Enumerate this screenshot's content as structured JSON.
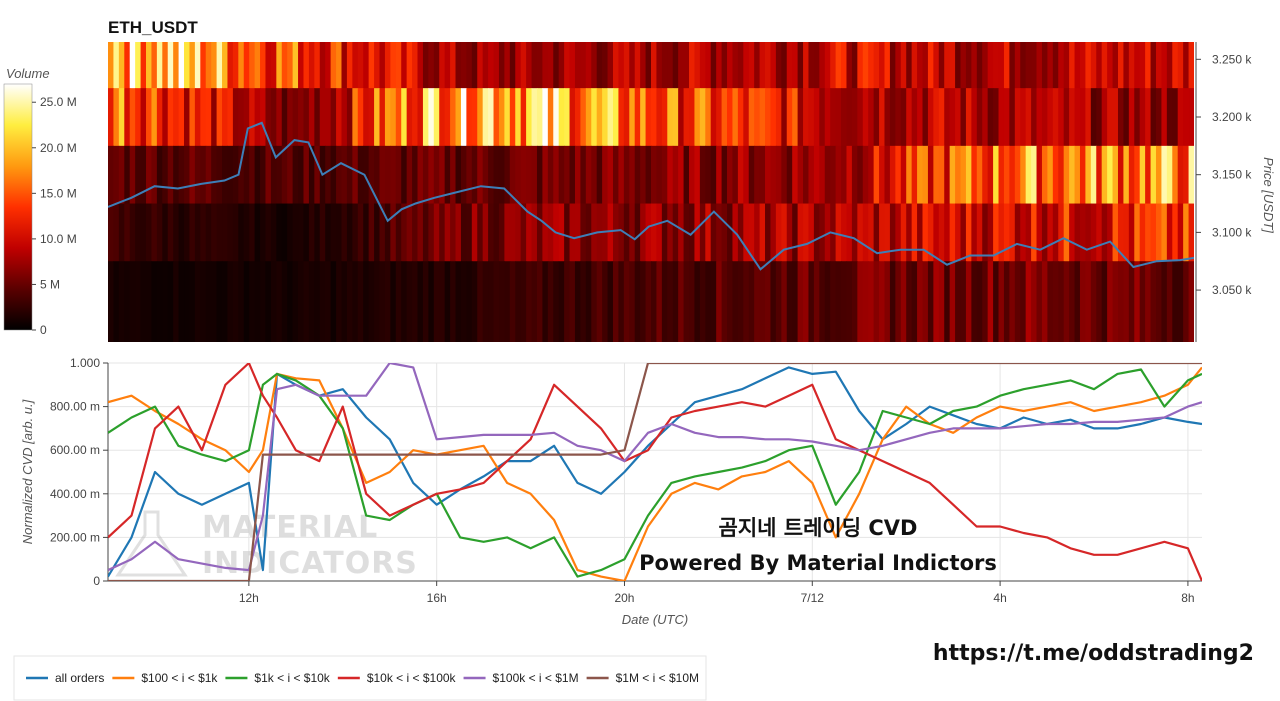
{
  "chart_data": [
    {
      "type": "heatmap",
      "title": "ETH_USDT",
      "colorbar": {
        "label": "Volume",
        "ticks": [
          "25.0 M",
          "20.0 M",
          "15.0 M",
          "10.0 M",
          "5 M",
          "0"
        ],
        "tick_values": [
          25,
          20,
          15,
          10,
          5,
          0
        ],
        "max": 27,
        "colors": [
          "#000000",
          "#5a0000",
          "#c00000",
          "#ff3000",
          "#ff9a10",
          "#ffee40",
          "#ffffff"
        ]
      },
      "ylabel": "Price [USDT]",
      "y_ticks": [
        "3.250 k",
        "3.200 k",
        "3.150 k",
        "3.100 k",
        "3.050 k"
      ],
      "y_tick_values": [
        3250,
        3200,
        3150,
        3100,
        3050
      ],
      "ylim": [
        3005,
        3265
      ],
      "price_bands": [
        3250,
        3200,
        3150,
        3100,
        3050,
        3000
      ],
      "band_levels": [
        [
          6,
          17,
          5,
          7,
          6,
          5,
          3
        ],
        [
          24,
          15,
          7,
          8,
          10,
          9,
          10
        ],
        [
          18,
          5,
          24,
          15,
          10,
          8,
          7
        ],
        [
          5,
          4,
          5,
          6,
          8,
          17,
          18
        ],
        [
          3,
          1,
          6,
          7,
          8,
          11,
          12
        ],
        [
          1,
          1,
          2,
          4,
          5,
          6,
          5
        ]
      ],
      "price_series": {
        "name": "",
        "x": [
          0,
          0.5,
          1,
          1.5,
          2,
          2.5,
          2.8,
          3,
          3.3,
          3.6,
          4,
          4.3,
          4.6,
          5,
          5.5,
          6,
          6.3,
          6.6,
          7,
          7.5,
          8,
          8.5,
          9,
          9.3,
          9.6,
          10,
          10.5,
          11,
          11.3,
          11.6,
          12,
          12.5,
          13,
          13.5,
          14,
          14.5,
          15,
          15.5,
          16,
          16.5,
          17,
          17.5,
          18,
          18.5,
          19,
          19.5,
          20,
          20.5,
          21,
          21.5,
          22,
          22.5,
          23,
          23.3
        ],
        "y": [
          3122,
          3130,
          3140,
          3138,
          3142,
          3145,
          3150,
          3190,
          3195,
          3165,
          3180,
          3178,
          3150,
          3160,
          3150,
          3110,
          3120,
          3125,
          3130,
          3135,
          3140,
          3138,
          3118,
          3110,
          3100,
          3095,
          3100,
          3102,
          3094,
          3105,
          3110,
          3098,
          3118,
          3098,
          3068,
          3085,
          3090,
          3100,
          3095,
          3082,
          3085,
          3085,
          3072,
          3080,
          3080,
          3090,
          3085,
          3095,
          3085,
          3092,
          3070,
          3075,
          3076,
          3078
        ]
      }
    },
    {
      "type": "line",
      "xlabel": "Date (UTC)",
      "ylabel": "Normalized CVD [arb. u.]",
      "x_ticks": [
        "12h",
        "16h",
        "20h",
        "7/12",
        "4h",
        "8h"
      ],
      "x_tick_values": [
        3,
        7,
        11,
        15,
        19,
        23
      ],
      "xlim": [
        0,
        23.3
      ],
      "y_ticks": [
        "0",
        "200.00 m",
        "400.00 m",
        "600.00 m",
        "800.00 m",
        "1.000"
      ],
      "y_tick_values": [
        0,
        0.2,
        0.4,
        0.6,
        0.8,
        1.0
      ],
      "ylim": [
        0,
        1.0
      ],
      "x": [
        0,
        0.5,
        1,
        1.5,
        2,
        2.5,
        3,
        3.3,
        3.6,
        4,
        4.5,
        5,
        5.5,
        6,
        6.5,
        7,
        7.5,
        8,
        8.5,
        9,
        9.5,
        10,
        10.5,
        11,
        11.5,
        12,
        12.5,
        13,
        13.5,
        14,
        14.5,
        15,
        15.5,
        16,
        16.5,
        17,
        17.5,
        18,
        18.5,
        19,
        19.5,
        20,
        20.5,
        21,
        21.5,
        22,
        22.5,
        23,
        23.3
      ],
      "series": [
        {
          "name": "all orders",
          "color": "#1f77b4",
          "values": [
            0.02,
            0.2,
            0.5,
            0.4,
            0.35,
            0.4,
            0.45,
            0.05,
            0.95,
            0.9,
            0.85,
            0.88,
            0.75,
            0.65,
            0.45,
            0.35,
            0.42,
            0.48,
            0.55,
            0.55,
            0.62,
            0.45,
            0.4,
            0.5,
            0.62,
            0.72,
            0.82,
            0.85,
            0.88,
            0.93,
            0.98,
            0.95,
            0.96,
            0.78,
            0.65,
            0.72,
            0.8,
            0.76,
            0.72,
            0.7,
            0.75,
            0.72,
            0.74,
            0.7,
            0.7,
            0.72,
            0.75,
            0.73,
            0.72
          ]
        },
        {
          "name": "$100 < i < $1k",
          "color": "#ff7f0e",
          "values": [
            0.82,
            0.85,
            0.78,
            0.72,
            0.65,
            0.6,
            0.5,
            0.6,
            0.95,
            0.93,
            0.92,
            0.7,
            0.45,
            0.5,
            0.6,
            0.58,
            0.6,
            0.62,
            0.45,
            0.4,
            0.28,
            0.05,
            0.02,
            0.0,
            0.25,
            0.4,
            0.45,
            0.42,
            0.48,
            0.5,
            0.55,
            0.45,
            0.2,
            0.4,
            0.65,
            0.8,
            0.72,
            0.68,
            0.75,
            0.8,
            0.78,
            0.8,
            0.82,
            0.78,
            0.8,
            0.82,
            0.85,
            0.9,
            0.98
          ]
        },
        {
          "name": "$1k < i < $10k",
          "color": "#2ca02c",
          "values": [
            0.68,
            0.75,
            0.8,
            0.62,
            0.58,
            0.55,
            0.6,
            0.9,
            0.95,
            0.92,
            0.85,
            0.7,
            0.3,
            0.28,
            0.35,
            0.4,
            0.2,
            0.18,
            0.2,
            0.15,
            0.2,
            0.02,
            0.05,
            0.1,
            0.3,
            0.45,
            0.48,
            0.5,
            0.52,
            0.55,
            0.6,
            0.62,
            0.35,
            0.5,
            0.78,
            0.75,
            0.72,
            0.78,
            0.8,
            0.85,
            0.88,
            0.9,
            0.92,
            0.88,
            0.95,
            0.97,
            0.8,
            0.92,
            0.95
          ]
        },
        {
          "name": "$10k < i < $100k",
          "color": "#d62728",
          "values": [
            0.2,
            0.3,
            0.7,
            0.8,
            0.6,
            0.9,
            1.0,
            0.85,
            0.75,
            0.6,
            0.55,
            0.8,
            0.4,
            0.3,
            0.35,
            0.4,
            0.42,
            0.45,
            0.55,
            0.65,
            0.9,
            0.8,
            0.7,
            0.55,
            0.6,
            0.75,
            0.78,
            0.8,
            0.82,
            0.8,
            0.85,
            0.9,
            0.65,
            0.6,
            0.55,
            0.5,
            0.45,
            0.35,
            0.25,
            0.25,
            0.22,
            0.2,
            0.15,
            0.12,
            0.12,
            0.15,
            0.18,
            0.15,
            0.0
          ]
        },
        {
          "name": "$100k < i < $1M",
          "color": "#9467bd",
          "values": [
            0.05,
            0.1,
            0.18,
            0.1,
            0.08,
            0.06,
            0.05,
            0.3,
            0.88,
            0.9,
            0.85,
            0.85,
            0.85,
            1.0,
            0.98,
            0.65,
            0.66,
            0.67,
            0.67,
            0.67,
            0.68,
            0.62,
            0.6,
            0.55,
            0.68,
            0.72,
            0.68,
            0.66,
            0.66,
            0.65,
            0.65,
            0.64,
            0.62,
            0.6,
            0.62,
            0.65,
            0.68,
            0.7,
            0.7,
            0.7,
            0.71,
            0.72,
            0.72,
            0.73,
            0.73,
            0.74,
            0.75,
            0.8,
            0.82
          ]
        },
        {
          "name": "$1M < i < $10M",
          "color": "#8c564b",
          "values": [
            0.0,
            0.0,
            0.0,
            0.0,
            0.0,
            0.0,
            0.0,
            0.58,
            0.58,
            0.58,
            0.58,
            0.58,
            0.58,
            0.58,
            0.58,
            0.58,
            0.58,
            0.58,
            0.58,
            0.58,
            0.58,
            0.58,
            0.58,
            0.6,
            1.0,
            1.0,
            1.0,
            1.0,
            1.0,
            1.0,
            1.0,
            1.0,
            1.0,
            1.0,
            1.0,
            1.0,
            1.0,
            1.0,
            1.0,
            1.0,
            1.0,
            1.0,
            1.0,
            1.0,
            1.0,
            1.0,
            1.0,
            1.0,
            1.0
          ]
        }
      ]
    }
  ],
  "overlay": {
    "line1": "곰지네 트레이딩 CVD",
    "line2": "Powered By Material Indictors"
  },
  "watermark": {
    "line1": "MATERIAL",
    "line2": "INDICATORS"
  },
  "footer_link": "https://t.me/oddstrading2"
}
